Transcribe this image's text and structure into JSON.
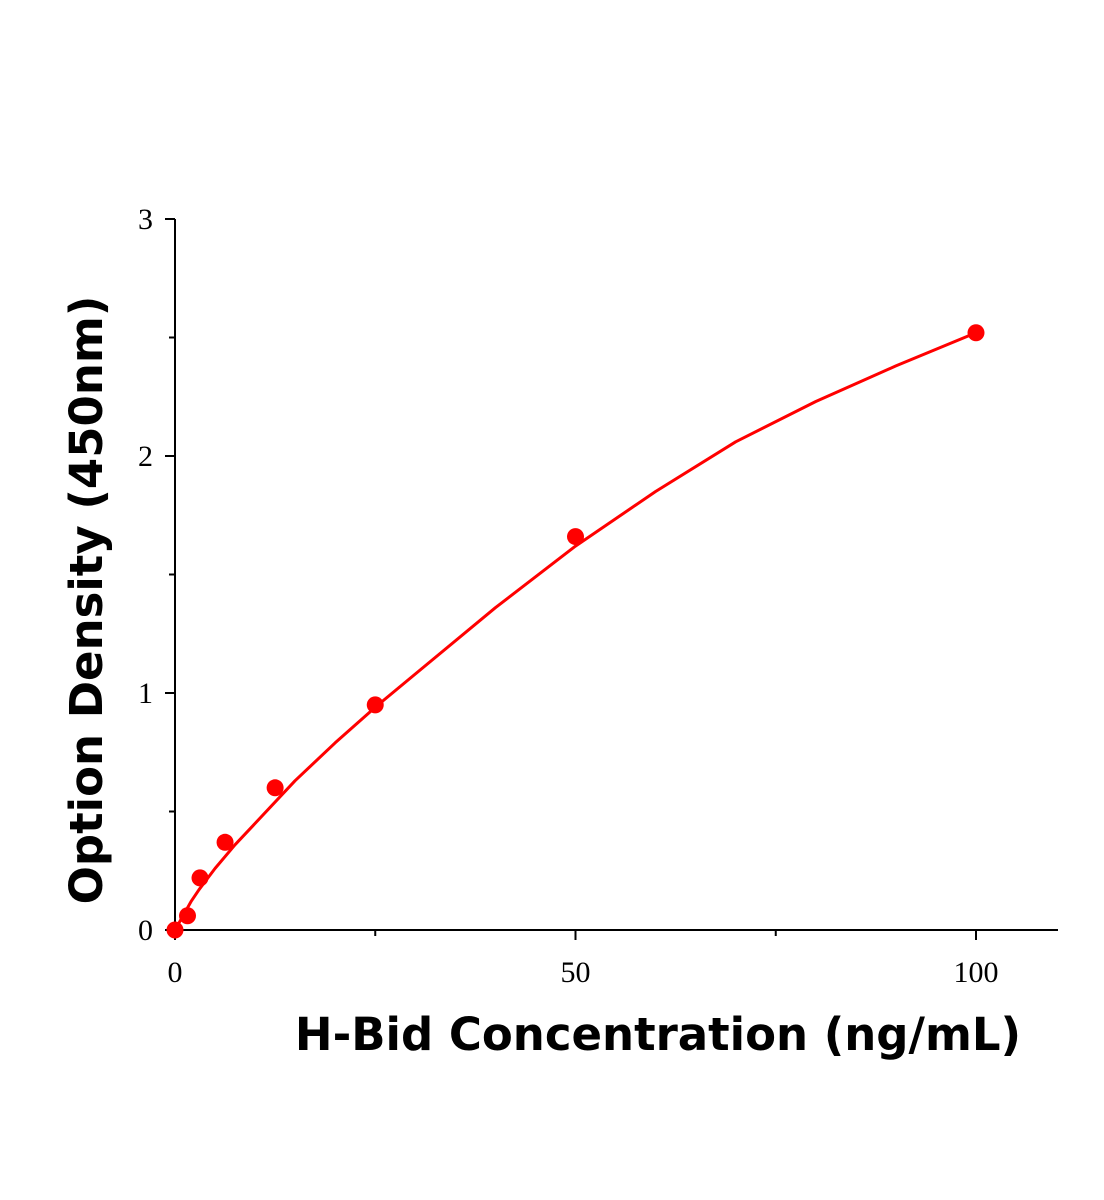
{
  "chart_data": {
    "type": "scatter",
    "xlabel": "H-Bid Concentration (ng/mL)",
    "ylabel": "Option Density (450nm)",
    "xlim": [
      0,
      110
    ],
    "ylim": [
      0,
      3
    ],
    "x_ticks": [
      0,
      50,
      100
    ],
    "x_tick_labels": [
      "0",
      "50",
      "100"
    ],
    "x_minor_ticks": [
      25,
      75
    ],
    "y_ticks": [
      0,
      1,
      2,
      3
    ],
    "y_tick_labels": [
      "0",
      "1",
      "2",
      "3"
    ],
    "y_minor_ticks": [
      0.5,
      1.5,
      2.5
    ],
    "grid": false,
    "series": [
      {
        "kind": "points",
        "color": "#ff0000",
        "x": [
          0,
          1.56,
          3.12,
          6.25,
          12.5,
          25,
          50,
          100
        ],
        "y": [
          0.0,
          0.06,
          0.22,
          0.37,
          0.6,
          0.95,
          1.66,
          2.52
        ]
      },
      {
        "kind": "fit-curve",
        "color": "#ff0000",
        "x": [
          0,
          1,
          2,
          3,
          5,
          7.5,
          10,
          15,
          20,
          25,
          30,
          40,
          50,
          60,
          70,
          80,
          90,
          100
        ],
        "y": [
          0.0,
          0.06,
          0.12,
          0.17,
          0.26,
          0.36,
          0.45,
          0.63,
          0.79,
          0.94,
          1.08,
          1.36,
          1.62,
          1.85,
          2.06,
          2.23,
          2.38,
          2.52
        ]
      }
    ]
  }
}
